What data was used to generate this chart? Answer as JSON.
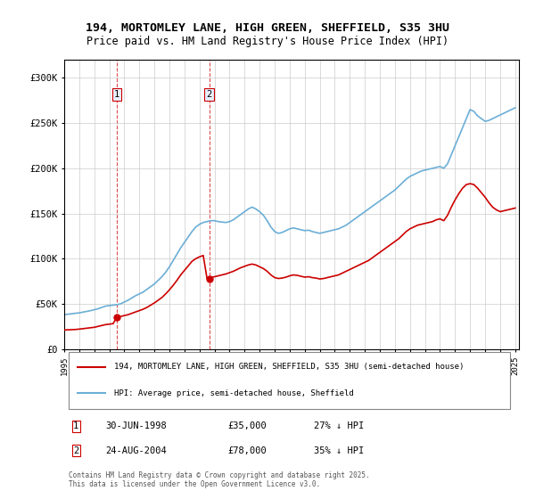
{
  "title1": "194, MORTOMLEY LANE, HIGH GREEN, SHEFFIELD, S35 3HU",
  "title2": "Price paid vs. HM Land Registry's House Price Index (HPI)",
  "ylabel": "",
  "xlabel": "",
  "ylim": [
    0,
    320000
  ],
  "yticks": [
    0,
    50000,
    100000,
    150000,
    200000,
    250000,
    300000
  ],
  "ytick_labels": [
    "£0",
    "£50K",
    "£100K",
    "£150K",
    "£200K",
    "£250K",
    "£300K"
  ],
  "legend_line1": "194, MORTOMLEY LANE, HIGH GREEN, SHEFFIELD, S35 3HU (semi-detached house)",
  "legend_line2": "HPI: Average price, semi-detached house, Sheffield",
  "hpi_color": "#6baed6",
  "price_color": "#cc0000",
  "marker_color": "#cc0000",
  "vline_color": "#cc0000",
  "annotation_bg": "#e8f0ff",
  "footnote": "Contains HM Land Registry data © Crown copyright and database right 2025.\nThis data is licensed under the Open Government Licence v3.0.",
  "purchase1_date": 1998.5,
  "purchase1_price": 35000,
  "purchase1_label": "1",
  "purchase2_date": 2004.65,
  "purchase2_price": 78000,
  "purchase2_label": "2",
  "table_data": [
    [
      "1",
      "30-JUN-1998",
      "£35,000",
      "27% ↓ HPI"
    ],
    [
      "2",
      "24-AUG-2004",
      "£78,000",
      "35% ↓ HPI"
    ]
  ],
  "hpi_x": [
    1995.0,
    1995.25,
    1995.5,
    1995.75,
    1996.0,
    1996.25,
    1996.5,
    1996.75,
    1997.0,
    1997.25,
    1997.5,
    1997.75,
    1998.0,
    1998.25,
    1998.5,
    1998.75,
    1999.0,
    1999.25,
    1999.5,
    1999.75,
    2000.0,
    2000.25,
    2000.5,
    2000.75,
    2001.0,
    2001.25,
    2001.5,
    2001.75,
    2002.0,
    2002.25,
    2002.5,
    2002.75,
    2003.0,
    2003.25,
    2003.5,
    2003.75,
    2004.0,
    2004.25,
    2004.5,
    2004.75,
    2005.0,
    2005.25,
    2005.5,
    2005.75,
    2006.0,
    2006.25,
    2006.5,
    2006.75,
    2007.0,
    2007.25,
    2007.5,
    2007.75,
    2008.0,
    2008.25,
    2008.5,
    2008.75,
    2009.0,
    2009.25,
    2009.5,
    2009.75,
    2010.0,
    2010.25,
    2010.5,
    2010.75,
    2011.0,
    2011.25,
    2011.5,
    2011.75,
    2012.0,
    2012.25,
    2012.5,
    2012.75,
    2013.0,
    2013.25,
    2013.5,
    2013.75,
    2014.0,
    2014.25,
    2014.5,
    2014.75,
    2015.0,
    2015.25,
    2015.5,
    2015.75,
    2016.0,
    2016.25,
    2016.5,
    2016.75,
    2017.0,
    2017.25,
    2017.5,
    2017.75,
    2018.0,
    2018.25,
    2018.5,
    2018.75,
    2019.0,
    2019.25,
    2019.5,
    2019.75,
    2020.0,
    2020.25,
    2020.5,
    2020.75,
    2021.0,
    2021.25,
    2021.5,
    2021.75,
    2022.0,
    2022.25,
    2022.5,
    2022.75,
    2023.0,
    2023.25,
    2023.5,
    2023.75,
    2024.0,
    2024.25,
    2024.5,
    2024.75,
    2025.0
  ],
  "hpi_y": [
    38000,
    38500,
    39000,
    39500,
    40000,
    40800,
    41600,
    42400,
    43500,
    44500,
    46000,
    47500,
    48000,
    48500,
    49000,
    50000,
    52000,
    54000,
    56500,
    59000,
    61000,
    63000,
    66000,
    69000,
    72000,
    76000,
    80000,
    85000,
    91000,
    98000,
    105000,
    112000,
    118000,
    124000,
    130000,
    135000,
    138000,
    140000,
    141000,
    142000,
    142000,
    141000,
    140500,
    140000,
    141000,
    143000,
    146000,
    149000,
    152000,
    155000,
    157000,
    155000,
    152000,
    148000,
    142000,
    135000,
    130000,
    128000,
    129000,
    131000,
    133000,
    134000,
    133000,
    132000,
    131000,
    131500,
    130000,
    129000,
    128000,
    129000,
    130000,
    131000,
    132000,
    133000,
    135000,
    137000,
    140000,
    143000,
    146000,
    149000,
    152000,
    155000,
    158000,
    161000,
    164000,
    167000,
    170000,
    173000,
    176000,
    180000,
    184000,
    188000,
    191000,
    193000,
    195000,
    197000,
    198000,
    199000,
    200000,
    201000,
    202000,
    200000,
    205000,
    215000,
    225000,
    235000,
    245000,
    255000,
    265000,
    263000,
    258000,
    255000,
    252000,
    253000,
    255000,
    257000,
    259000,
    261000,
    263000,
    265000,
    267000
  ],
  "price_x": [
    1995.0,
    1995.25,
    1995.5,
    1995.75,
    1996.0,
    1996.25,
    1996.5,
    1996.75,
    1997.0,
    1997.25,
    1997.5,
    1997.75,
    1998.0,
    1998.25,
    1998.5,
    1998.75,
    1999.0,
    1999.25,
    1999.5,
    1999.75,
    2000.0,
    2000.25,
    2000.5,
    2000.75,
    2001.0,
    2001.25,
    2001.5,
    2001.75,
    2002.0,
    2002.25,
    2002.5,
    2002.75,
    2003.0,
    2003.25,
    2003.5,
    2003.75,
    2004.0,
    2004.25,
    2004.5,
    2004.75,
    2005.0,
    2005.25,
    2005.5,
    2005.75,
    2006.0,
    2006.25,
    2006.5,
    2006.75,
    2007.0,
    2007.25,
    2007.5,
    2007.75,
    2008.0,
    2008.25,
    2008.5,
    2008.75,
    2009.0,
    2009.25,
    2009.5,
    2009.75,
    2010.0,
    2010.25,
    2010.5,
    2010.75,
    2011.0,
    2011.25,
    2011.5,
    2011.75,
    2012.0,
    2012.25,
    2012.5,
    2012.75,
    2013.0,
    2013.25,
    2013.5,
    2013.75,
    2014.0,
    2014.25,
    2014.5,
    2014.75,
    2015.0,
    2015.25,
    2015.5,
    2015.75,
    2016.0,
    2016.25,
    2016.5,
    2016.75,
    2017.0,
    2017.25,
    2017.5,
    2017.75,
    2018.0,
    2018.25,
    2018.5,
    2018.75,
    2019.0,
    2019.25,
    2019.5,
    2019.75,
    2020.0,
    2020.25,
    2020.5,
    2020.75,
    2021.0,
    2021.25,
    2021.5,
    2021.75,
    2022.0,
    2022.25,
    2022.5,
    2022.75,
    2023.0,
    2023.25,
    2023.5,
    2023.75,
    2024.0,
    2024.25,
    2024.5,
    2024.75,
    2025.0
  ],
  "price_y": [
    21000,
    21200,
    21400,
    21600,
    22000,
    22500,
    23000,
    23500,
    24000,
    25000,
    26000,
    27000,
    27500,
    28000,
    35000,
    36000,
    37000,
    38000,
    39500,
    41000,
    42500,
    44000,
    46000,
    48500,
    51000,
    54000,
    57000,
    61000,
    65500,
    70500,
    76000,
    82000,
    87000,
    92000,
    97000,
    100000,
    102000,
    103500,
    78000,
    79000,
    80000,
    81000,
    82000,
    83000,
    84500,
    86000,
    88000,
    90000,
    91500,
    93000,
    94000,
    93000,
    91000,
    89000,
    86000,
    82000,
    79000,
    78000,
    78500,
    79500,
    81000,
    82000,
    81500,
    80500,
    79500,
    80000,
    79000,
    78500,
    77500,
    78000,
    79000,
    80000,
    81000,
    82000,
    84000,
    86000,
    88000,
    90000,
    92000,
    94000,
    96000,
    98000,
    101000,
    104000,
    107000,
    110000,
    113000,
    116000,
    119000,
    122000,
    126000,
    130000,
    133000,
    135000,
    137000,
    138000,
    139000,
    140000,
    141000,
    143000,
    144000,
    142000,
    148000,
    157000,
    165000,
    172000,
    178000,
    182000,
    183000,
    182000,
    178000,
    173000,
    168000,
    162000,
    157000,
    154000,
    152000,
    153000,
    154000,
    155000,
    156000
  ]
}
